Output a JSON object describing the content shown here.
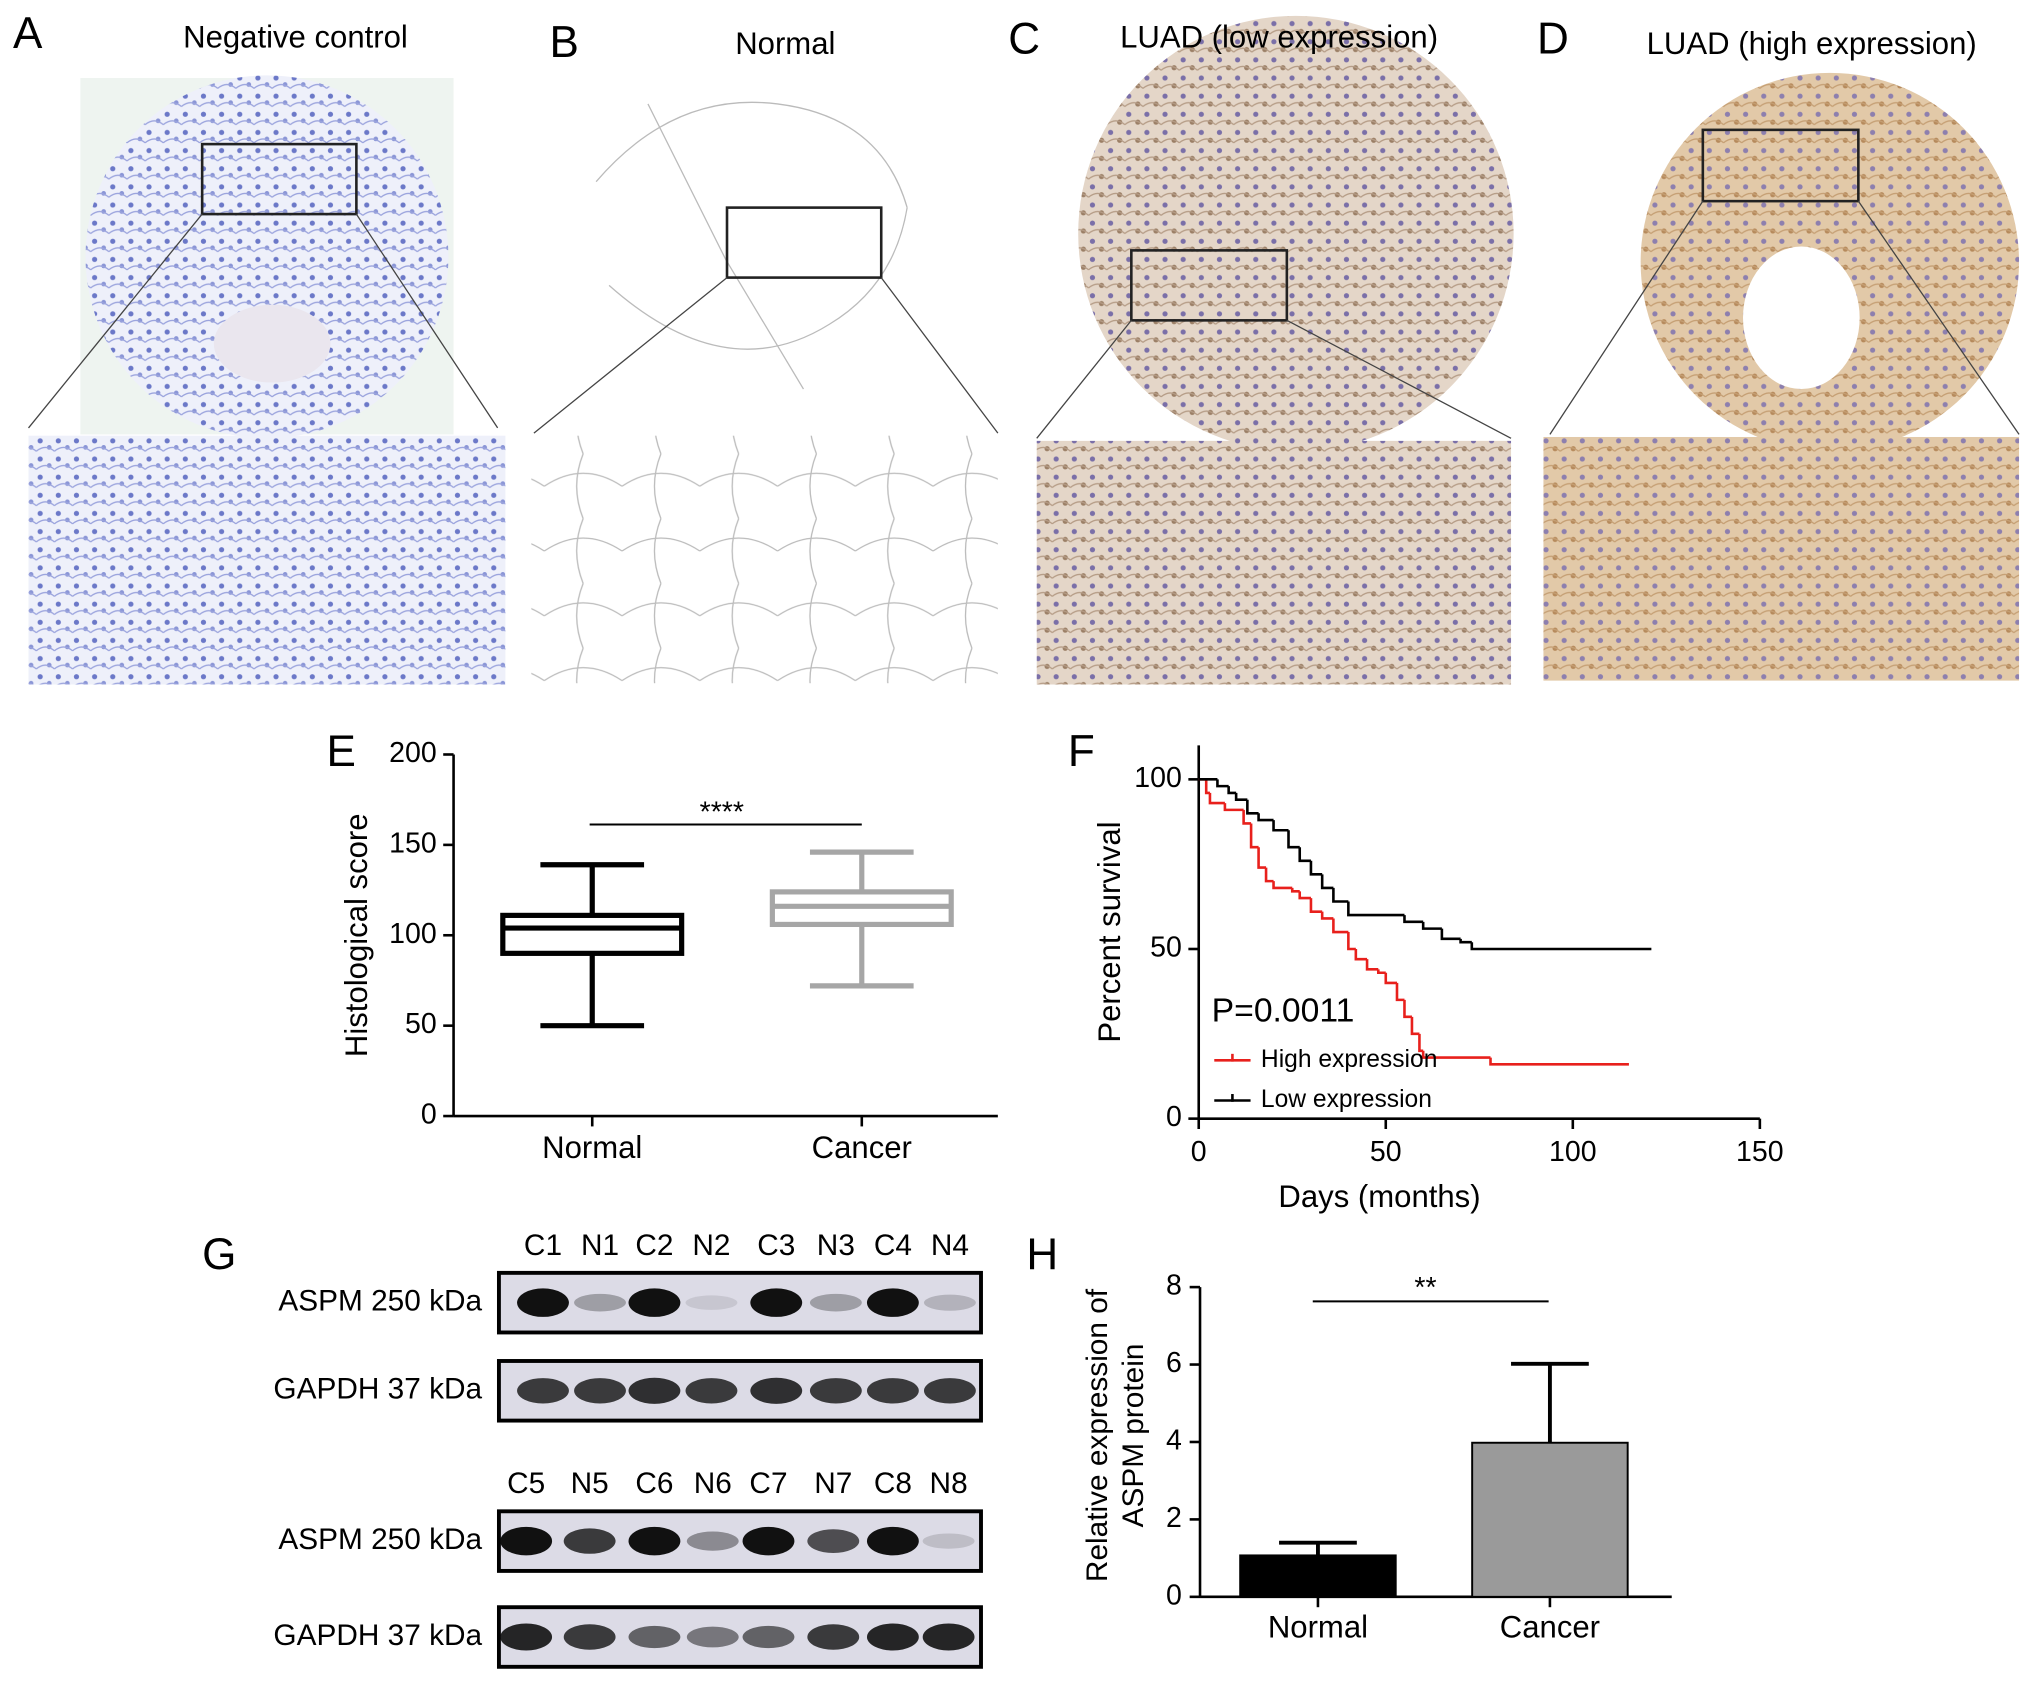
{
  "panels": [
    {
      "letter": "A",
      "title": "Negative control"
    },
    {
      "letter": "B",
      "title": "Normal"
    },
    {
      "letter": "C",
      "title": "LUAD (low expression)"
    },
    {
      "letter": "D",
      "title": "LUAD (high expression)"
    }
  ],
  "western_blot": {
    "letter": "G",
    "blots": [
      {
        "lanes": [
          "C1",
          "N1",
          "C2",
          "N2",
          "C3",
          "N3",
          "C4",
          "N4"
        ],
        "rows": [
          "ASPM 250 kDa",
          "GAPDH 37 kDa"
        ]
      },
      {
        "lanes": [
          "C5",
          "N5",
          "C6",
          "N6",
          "C7",
          "N7",
          "C8",
          "N8"
        ],
        "rows": [
          "ASPM 250 kDa",
          "GAPDH 37 kDa"
        ]
      }
    ]
  },
  "chart_data": [
    {
      "type": "box",
      "panel_label": "E",
      "ylabel": "Histological score",
      "categories": [
        "Normal",
        "Cancer"
      ],
      "colors": [
        "#000000",
        "#a6a6a6"
      ],
      "whislo": [
        50,
        72
      ],
      "q1": [
        90,
        106
      ],
      "median": [
        104,
        116
      ],
      "q3": [
        111,
        124
      ],
      "whishi": [
        139,
        146
      ],
      "ylim": [
        0,
        200
      ],
      "yticks": [
        0,
        50,
        100,
        150,
        200
      ],
      "significance": "****"
    },
    {
      "type": "step",
      "panel_label": "F",
      "xlabel": "Days (months)",
      "ylabel": "Percent survival",
      "xlim": [
        0,
        150
      ],
      "xticks": [
        0,
        50,
        100,
        150
      ],
      "ylim": [
        0,
        110
      ],
      "yticks": [
        0,
        50,
        100
      ],
      "annotation": "P=0.0011",
      "legend": "lower left",
      "series": [
        {
          "name": "High expression",
          "color": "#e8201c",
          "x": [
            0,
            2,
            3,
            7,
            12,
            14,
            16,
            18,
            20,
            25,
            27,
            30,
            33,
            36,
            40,
            42,
            45,
            48,
            50,
            53,
            55,
            57,
            59,
            60,
            78,
            115
          ],
          "values": [
            100,
            96,
            93,
            91,
            87,
            80,
            74,
            70,
            68,
            67,
            65,
            61,
            59,
            55,
            50,
            47,
            44,
            43,
            40,
            35,
            30,
            25,
            20,
            18,
            16,
            16
          ]
        },
        {
          "name": "Low expression",
          "color": "#000000",
          "x": [
            0,
            5,
            8,
            10,
            13,
            16,
            20,
            24,
            27,
            30,
            33,
            36,
            40,
            55,
            60,
            65,
            70,
            73,
            121
          ],
          "values": [
            100,
            98,
            96,
            94,
            90,
            88,
            85,
            80,
            76,
            72,
            68,
            64,
            60,
            58,
            56,
            53,
            52,
            50,
            50
          ]
        }
      ]
    },
    {
      "type": "bar",
      "panel_label": "H",
      "ylabel": [
        "Relative expression of",
        "ASPM protein"
      ],
      "categories": [
        "Normal",
        "Cancer"
      ],
      "values": [
        1.07,
        3.98
      ],
      "errors": [
        0.33,
        2.04
      ],
      "colors": [
        "#000000",
        "#9a9a9a"
      ],
      "ylim": [
        0,
        8
      ],
      "yticks": [
        0,
        2,
        4,
        6,
        8
      ],
      "significance": "**"
    }
  ]
}
